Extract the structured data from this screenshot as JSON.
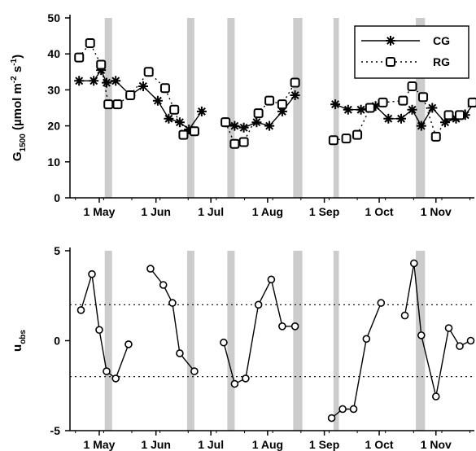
{
  "chart_data": [
    {
      "type": "line",
      "ylabel": {
        "main": "G",
        "sub": "1500",
        "unit_a": " (",
        "mu": "µ",
        "unit_b": "mol m",
        "sup1": "-2",
        "unit_c": " s",
        "sup2": "-1",
        "unit_d": ")"
      },
      "ylim": [
        0,
        50
      ],
      "yticks": [
        0,
        10,
        20,
        30,
        40,
        50
      ],
      "x_ticks": [
        {
          "x": 13,
          "label": "1 May"
        },
        {
          "x": 44,
          "label": "1 Jun"
        },
        {
          "x": 74,
          "label": "1 Jul"
        },
        {
          "x": 105,
          "label": "1 Aug"
        },
        {
          "x": 136,
          "label": "1 Sep"
        },
        {
          "x": 166,
          "label": "1 Oct"
        },
        {
          "x": 197,
          "label": "1 Nov"
        }
      ],
      "xlim": [
        -3,
        218
      ],
      "shaded_bands": [
        [
          16,
          20
        ],
        [
          61,
          65
        ],
        [
          83,
          87
        ],
        [
          119,
          124
        ],
        [
          141,
          144
        ],
        [
          186,
          191
        ]
      ],
      "legend": {
        "position": "top-right",
        "entries": [
          "CG",
          "RG"
        ]
      },
      "series": [
        {
          "name": "CG",
          "style": "solid-star",
          "segments": [
            [
              [
                2,
                32.5
              ],
              [
                10,
                32.5
              ],
              [
                14,
                35.5
              ],
              [
                17,
                32
              ],
              [
                22,
                32.5
              ],
              [
                30,
                28.5
              ],
              [
                37,
                31
              ],
              [
                45,
                27
              ],
              [
                51,
                22
              ],
              [
                57,
                21
              ],
              [
                62,
                19
              ],
              [
                69,
                24
              ]
            ],
            [
              [
                82,
                21
              ],
              [
                87,
                20
              ],
              [
                92,
                19.5
              ],
              [
                99,
                21
              ],
              [
                106,
                20
              ],
              [
                113,
                24
              ],
              [
                120,
                28.5
              ]
            ],
            [
              [
                142,
                26
              ],
              [
                149,
                24.5
              ],
              [
                156,
                24.5
              ],
              [
                164,
                25.5
              ],
              [
                171,
                22
              ],
              [
                178,
                22
              ],
              [
                184,
                24.5
              ],
              [
                189,
                20
              ],
              [
                195,
                25
              ],
              [
                202,
                21
              ],
              [
                208,
                22
              ],
              [
                213,
                23
              ],
              [
                218,
                26.5
              ]
            ]
          ]
        },
        {
          "name": "RG",
          "style": "dotted-square",
          "segments": [
            [
              [
                2,
                39
              ],
              [
                8,
                43
              ],
              [
                14,
                37
              ],
              [
                18,
                26
              ],
              [
                23,
                26
              ],
              [
                30,
                28.5
              ],
              [
                40,
                35
              ],
              [
                49,
                30.5
              ],
              [
                54,
                24.5
              ],
              [
                59,
                17.5
              ],
              [
                65,
                18.5
              ]
            ],
            [
              [
                82,
                21
              ],
              [
                87,
                15
              ],
              [
                92,
                15.5
              ],
              [
                100,
                23.5
              ],
              [
                106,
                27
              ],
              [
                113,
                26
              ],
              [
                120,
                32
              ]
            ],
            [
              [
                141,
                16
              ],
              [
                148,
                16.5
              ],
              [
                154,
                17.5
              ],
              [
                161,
                25
              ],
              [
                168,
                26.5
              ],
              [
                179,
                27
              ],
              [
                184,
                31
              ],
              [
                190,
                28
              ],
              [
                197,
                17
              ],
              [
                204,
                23
              ],
              [
                210,
                23
              ],
              [
                217,
                26.5
              ]
            ]
          ]
        }
      ]
    },
    {
      "type": "line",
      "ylabel": {
        "main": "u",
        "sub": "obs"
      },
      "ylim": [
        -5,
        5
      ],
      "yticks": [
        -5,
        0,
        5
      ],
      "reference_lines": [
        2,
        -2
      ],
      "x_ticks": [
        {
          "x": 13,
          "label": "1 May"
        },
        {
          "x": 44,
          "label": "1 Jun"
        },
        {
          "x": 74,
          "label": "1 Jul"
        },
        {
          "x": 105,
          "label": "1 Aug"
        },
        {
          "x": 136,
          "label": "1 Sep"
        },
        {
          "x": 166,
          "label": "1 Oct"
        },
        {
          "x": 197,
          "label": "1 Nov"
        }
      ],
      "xlim": [
        -3,
        218
      ],
      "shaded_bands": [
        [
          16,
          20
        ],
        [
          61,
          65
        ],
        [
          83,
          87
        ],
        [
          119,
          124
        ],
        [
          141,
          144
        ],
        [
          186,
          191
        ]
      ],
      "series": [
        {
          "name": "",
          "style": "solid-circle",
          "segments": [
            [
              [
                3,
                1.7
              ],
              [
                9,
                3.7
              ],
              [
                13,
                0.6
              ],
              [
                17,
                -1.7
              ],
              [
                22,
                -2.1
              ],
              [
                29,
                -0.2
              ]
            ],
            [
              [
                41,
                4
              ],
              [
                48,
                3.1
              ],
              [
                53,
                2.1
              ],
              [
                57,
                -0.7
              ],
              [
                65,
                -1.7
              ]
            ],
            [
              [
                81,
                -0.1
              ],
              [
                87,
                -2.4
              ],
              [
                93,
                -2.1
              ],
              [
                100,
                2
              ],
              [
                107,
                3.4
              ],
              [
                113,
                0.8
              ],
              [
                120,
                0.8
              ]
            ],
            [
              [
                140,
                -4.3
              ],
              [
                146,
                -3.8
              ],
              [
                152,
                -3.8
              ],
              [
                159,
                0.1
              ],
              [
                167,
                2.1
              ]
            ],
            [
              [
                180,
                1.4
              ],
              [
                185,
                4.3
              ],
              [
                189,
                0.3
              ],
              [
                197,
                -3.1
              ],
              [
                204,
                0.7
              ],
              [
                210,
                -0.3
              ],
              [
                216,
                0
              ]
            ]
          ]
        }
      ]
    }
  ]
}
